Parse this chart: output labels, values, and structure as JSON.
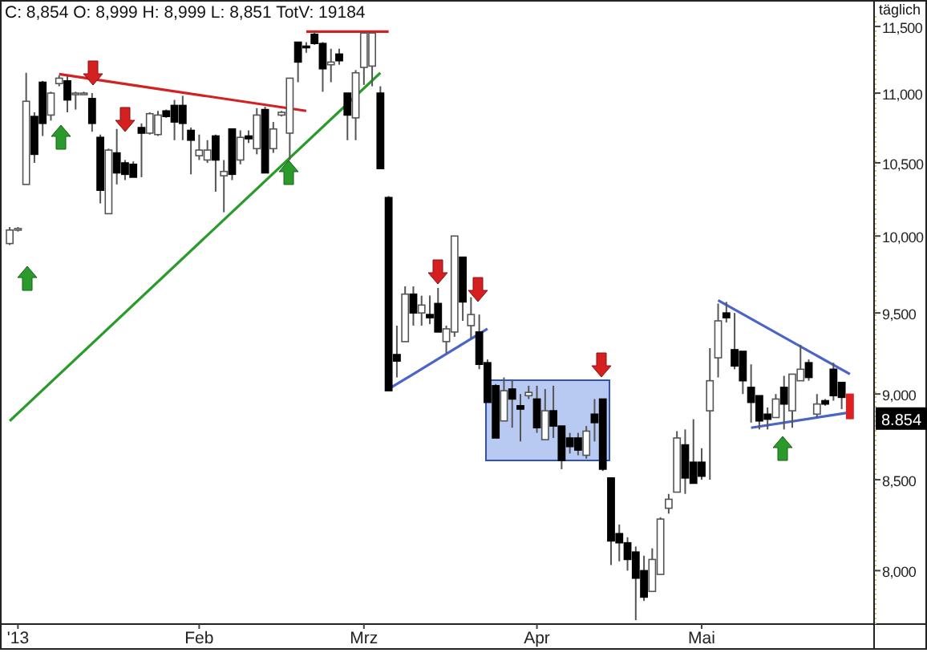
{
  "chart_data": {
    "type": "candlestick",
    "title": "C: 8,854 O: 8,999 H: 8,999 L: 8,851 TotV: 19184",
    "subtitle": "täglich",
    "categories": [
      null,
      "'13",
      null,
      null,
      null,
      null,
      null,
      null,
      null,
      null,
      null,
      null,
      null,
      null,
      null,
      null,
      null,
      null,
      null,
      null,
      null,
      null,
      null,
      "Feb",
      null,
      null,
      null,
      null,
      null,
      null,
      null,
      null,
      null,
      null,
      null,
      null,
      null,
      null,
      null,
      null,
      null,
      null,
      null,
      "Mrz",
      null,
      null,
      null,
      null,
      null,
      null,
      null,
      null,
      null,
      null,
      null,
      null,
      null,
      null,
      null,
      null,
      null,
      null,
      null,
      null,
      "Apr",
      null,
      null,
      null,
      null,
      null,
      null,
      null,
      null,
      null,
      null,
      null,
      null,
      null,
      null,
      null,
      null,
      null,
      null,
      null,
      "Mai",
      null,
      null,
      null,
      null,
      null,
      null,
      null,
      null,
      null,
      null,
      null,
      null,
      null,
      null,
      null,
      null,
      null,
      null
    ],
    "ohlc": [
      [
        9950,
        10060,
        9940,
        10040
      ],
      [
        10040,
        10060,
        10030,
        10050
      ],
      [
        10350,
        11150,
        10350,
        10940
      ],
      [
        10830,
        10860,
        10500,
        10560
      ],
      [
        11080,
        11090,
        10690,
        10780
      ],
      [
        10840,
        11010,
        10800,
        11000
      ],
      [
        11070,
        11130,
        11050,
        11110
      ],
      [
        11090,
        11130,
        10860,
        10950
      ],
      [
        11000,
        11010,
        10880,
        11000
      ],
      [
        11000,
        11010,
        10990,
        11000
      ],
      [
        10960,
        11000,
        10720,
        10780
      ],
      [
        10680,
        10700,
        10220,
        10310
      ],
      [
        10150,
        10600,
        10150,
        10590
      ],
      [
        10570,
        10740,
        10350,
        10430
      ],
      [
        10500,
        10520,
        10380,
        10420
      ],
      [
        10490,
        10510,
        10400,
        10400
      ],
      [
        10750,
        10780,
        10400,
        10710
      ],
      [
        10710,
        10860,
        10700,
        10850
      ],
      [
        10700,
        10870,
        10690,
        10840
      ],
      [
        10870,
        10880,
        10820,
        10830
      ],
      [
        10910,
        10950,
        10660,
        10790
      ],
      [
        10910,
        10980,
        10660,
        10780
      ],
      [
        10730,
        10750,
        10420,
        10660
      ],
      [
        10550,
        10700,
        10520,
        10590
      ],
      [
        10520,
        10660,
        10500,
        10590
      ],
      [
        10690,
        10700,
        10300,
        10520
      ],
      [
        10410,
        10520,
        10160,
        10440
      ],
      [
        10740,
        10740,
        10380,
        10420
      ],
      [
        10520,
        10730,
        10490,
        10680
      ],
      [
        10690,
        10730,
        10640,
        10670
      ],
      [
        10600,
        10890,
        10560,
        10840
      ],
      [
        10880,
        10900,
        10430,
        10430
      ],
      [
        10600,
        10790,
        10570,
        10740
      ],
      [
        10840,
        10870,
        10830,
        10860
      ],
      [
        10710,
        11110,
        10520,
        11110
      ],
      [
        11380,
        11380,
        11080,
        11230
      ],
      [
        11350,
        11380,
        11300,
        11340
      ],
      [
        11440,
        11470,
        11360,
        11370
      ],
      [
        11370,
        11380,
        11010,
        11180
      ],
      [
        11210,
        11330,
        11080,
        11230
      ],
      [
        11290,
        11330,
        11210,
        11240
      ],
      [
        11000,
        11000,
        10660,
        10840
      ],
      [
        10820,
        11170,
        10660,
        11150
      ],
      [
        11190,
        11450,
        11060,
        11450
      ],
      [
        11200,
        11450,
        11050,
        11450
      ],
      [
        11000,
        11050,
        10460,
        10460
      ],
      [
        10260,
        10270,
        9020,
        9020
      ],
      [
        9240,
        9420,
        9100,
        9200
      ],
      [
        9320,
        9670,
        9320,
        9620
      ],
      [
        9620,
        9670,
        9420,
        9500
      ],
      [
        9500,
        9610,
        9420,
        9550
      ],
      [
        9490,
        9610,
        9430,
        9470
      ],
      [
        9560,
        9660,
        9380,
        9380
      ],
      [
        9320,
        9420,
        9250,
        9400
      ],
      [
        9380,
        10000,
        9350,
        10000
      ],
      [
        9860,
        9860,
        9450,
        9570
      ],
      [
        9420,
        9600,
        9340,
        9490
      ],
      [
        9380,
        9490,
        9150,
        9180
      ],
      [
        9190,
        9210,
        8950,
        8950
      ],
      [
        9050,
        9060,
        8740,
        8740
      ],
      [
        8840,
        9100,
        8840,
        9020
      ],
      [
        9030,
        9080,
        8800,
        8970
      ],
      [
        8930,
        9000,
        8720,
        8910
      ],
      [
        8990,
        9050,
        8970,
        9010
      ],
      [
        8970,
        9050,
        8770,
        8800
      ],
      [
        8730,
        9030,
        8730,
        8900
      ],
      [
        8900,
        9050,
        8740,
        8810
      ],
      [
        8810,
        8810,
        8560,
        8610
      ],
      [
        8740,
        8770,
        8650,
        8690
      ],
      [
        8740,
        8770,
        8640,
        8670
      ],
      [
        8640,
        8810,
        8620,
        8780
      ],
      [
        8880,
        8970,
        8720,
        8830
      ],
      [
        8970,
        8970,
        8550,
        8560
      ],
      [
        8510,
        8510,
        8030,
        8160
      ],
      [
        8200,
        8250,
        8050,
        8150
      ],
      [
        8150,
        8180,
        8000,
        8060
      ],
      [
        8100,
        8130,
        7740,
        7960
      ],
      [
        8000,
        8080,
        7840,
        7860
      ],
      [
        7890,
        8120,
        7890,
        8060
      ],
      [
        7980,
        8290,
        7980,
        8280
      ],
      [
        8340,
        8420,
        8310,
        8390
      ],
      [
        8430,
        8780,
        8430,
        8740
      ],
      [
        8700,
        8790,
        8420,
        8510
      ],
      [
        8600,
        8850,
        8480,
        8480
      ],
      [
        8600,
        8680,
        8500,
        8520
      ],
      [
        8900,
        9280,
        8500,
        9080
      ],
      [
        9220,
        9560,
        9100,
        9450
      ],
      [
        9500,
        9570,
        9440,
        9470
      ],
      [
        9270,
        9500,
        9150,
        9170
      ],
      [
        9260,
        9260,
        9000,
        9080
      ],
      [
        9040,
        9180,
        8830,
        8950
      ],
      [
        8990,
        8990,
        8790,
        8840
      ],
      [
        8880,
        8920,
        8790,
        8850
      ],
      [
        8860,
        9000,
        8860,
        8970
      ],
      [
        9040,
        9110,
        8790,
        8940
      ],
      [
        8900,
        9120,
        8800,
        9120
      ],
      [
        9080,
        9300,
        9080,
        9150
      ],
      [
        9190,
        9210,
        9080,
        9100
      ],
      [
        8880,
        9000,
        8860,
        8940
      ],
      [
        8960,
        8970,
        8930,
        8940
      ],
      [
        9150,
        9190,
        8960,
        8990
      ],
      [
        9070,
        9070,
        8910,
        8980
      ],
      [
        8999,
        8999,
        8851,
        8854
      ]
    ],
    "colors": [
      "#ffffff",
      "#ffffff",
      "#ffffff",
      "#000000",
      "#000000",
      "#ffffff",
      "#ffffff",
      "#000000",
      "#ffffff",
      "#ffffff",
      "#000000",
      "#000000",
      "#ffffff",
      "#000000",
      "#000000",
      "#000000",
      "#000000",
      "#ffffff",
      "#ffffff",
      "#000000",
      "#000000",
      "#000000",
      "#000000",
      "#ffffff",
      "#ffffff",
      "#000000",
      "#ffffff",
      "#000000",
      "#ffffff",
      "#000000",
      "#ffffff",
      "#000000",
      "#ffffff",
      "#ffffff",
      "#ffffff",
      "#000000",
      "#000000",
      "#000000",
      "#000000",
      "#ffffff",
      "#000000",
      "#000000",
      "#ffffff",
      "#ffffff",
      "#ffffff",
      "#000000",
      "#000000",
      "#000000",
      "#ffffff",
      "#000000",
      "#ffffff",
      "#000000",
      "#000000",
      "#ffffff",
      "#ffffff",
      "#000000",
      "#ffffff",
      "#000000",
      "#000000",
      "#000000",
      "#ffffff",
      "#000000",
      "#000000",
      "#ffffff",
      "#000000",
      "#ffffff",
      "#000000",
      "#000000",
      "#000000",
      "#000000",
      "#ffffff",
      "#000000",
      "#000000",
      "#000000",
      "#000000",
      "#000000",
      "#000000",
      "#000000",
      "#ffffff",
      "#ffffff",
      "#ffffff",
      "#ffffff",
      "#000000",
      "#000000",
      "#000000",
      "#ffffff",
      "#ffffff",
      "#000000",
      "#000000",
      "#000000",
      "#000000",
      "#000000",
      "#000000",
      "#ffffff",
      "#000000",
      "#ffffff",
      "#ffffff",
      "#000000",
      "#ffffff",
      "#000000",
      "#000000",
      "#000000",
      "#e02020"
    ],
    "series": [
      {
        "type": "line",
        "color": "#d42020",
        "values": [
          null,
          null,
          null,
          null,
          null,
          null,
          11140,
          null,
          null,
          null,
          null,
          null,
          null,
          null,
          null,
          null,
          null,
          null,
          null,
          null,
          null,
          null,
          null,
          null,
          null,
          null,
          null,
          null,
          null,
          null,
          null,
          null,
          null,
          null,
          null,
          null,
          10870,
          null,
          null,
          null,
          null,
          null,
          null,
          null,
          null,
          null,
          null,
          null,
          null,
          null,
          null,
          null,
          null,
          null,
          null,
          null,
          null,
          null,
          null,
          null,
          null,
          null,
          null,
          null,
          null,
          null,
          null,
          null,
          null,
          null,
          null,
          null,
          null,
          null,
          null,
          null,
          null,
          null,
          null,
          null,
          null,
          null,
          null,
          null,
          null,
          null,
          null,
          null,
          null,
          null,
          null,
          null,
          null,
          null,
          null,
          null,
          null,
          null,
          null,
          null,
          null,
          null,
          null
        ]
      },
      {
        "type": "line",
        "color": "#d42020",
        "values": [
          null,
          null,
          null,
          null,
          null,
          null,
          null,
          null,
          null,
          null,
          null,
          null,
          null,
          null,
          null,
          null,
          null,
          null,
          null,
          null,
          null,
          null,
          null,
          null,
          null,
          null,
          null,
          null,
          null,
          null,
          null,
          null,
          null,
          null,
          null,
          null,
          11460,
          null,
          null,
          null,
          null,
          null,
          null,
          null,
          null,
          null,
          11460,
          null,
          null,
          null,
          null,
          null,
          null,
          null,
          null,
          null,
          null,
          null,
          null,
          null,
          null,
          null,
          null,
          null,
          null,
          null,
          null,
          null,
          null,
          null,
          null,
          null,
          null,
          null,
          null,
          null,
          null,
          null,
          null,
          null,
          null,
          null,
          null,
          null,
          null,
          null,
          null,
          null,
          null,
          null,
          null,
          null,
          null,
          null,
          null,
          null,
          null,
          null,
          null,
          null,
          null,
          null,
          null
        ]
      },
      {
        "type": "line",
        "color": "#2a9a2a",
        "values": [
          8840,
          null,
          null,
          null,
          null,
          null,
          null,
          null,
          null,
          null,
          null,
          null,
          null,
          null,
          null,
          null,
          null,
          null,
          null,
          null,
          null,
          null,
          null,
          null,
          null,
          null,
          null,
          null,
          null,
          null,
          null,
          null,
          null,
          null,
          null,
          null,
          null,
          null,
          null,
          null,
          null,
          null,
          null,
          null,
          null,
          11150,
          null,
          null,
          null,
          null,
          null,
          null,
          null,
          null,
          null,
          null,
          null,
          null,
          null,
          null,
          null,
          null,
          null,
          null,
          null,
          null,
          null,
          null,
          null,
          null,
          null,
          null,
          null,
          null,
          null,
          null,
          null,
          null,
          null,
          null,
          null,
          null,
          null,
          null,
          null,
          null,
          null,
          null,
          null,
          null,
          null,
          null,
          null,
          null,
          null,
          null,
          null,
          null,
          null,
          null,
          null,
          null,
          null
        ]
      },
      {
        "type": "line",
        "color": "#4a64c8",
        "values": [
          null,
          null,
          null,
          null,
          null,
          null,
          null,
          null,
          null,
          null,
          null,
          null,
          null,
          null,
          null,
          null,
          null,
          null,
          null,
          null,
          null,
          null,
          null,
          null,
          null,
          null,
          null,
          null,
          null,
          null,
          null,
          null,
          null,
          null,
          null,
          null,
          null,
          null,
          null,
          null,
          null,
          null,
          null,
          null,
          null,
          null,
          9030,
          null,
          null,
          null,
          null,
          null,
          null,
          null,
          null,
          null,
          null,
          null,
          9400,
          null,
          null,
          null,
          null,
          null,
          null,
          null,
          null,
          null,
          null,
          null,
          null,
          null,
          null,
          null,
          null,
          null,
          null,
          null,
          null,
          null,
          null,
          null,
          null,
          null,
          null,
          null,
          null,
          null,
          null,
          null,
          null,
          null,
          null,
          null,
          null,
          null,
          null,
          null,
          null,
          null,
          null,
          null,
          null
        ]
      },
      {
        "type": "line",
        "color": "#4a64c8",
        "values": [
          null,
          null,
          null,
          null,
          null,
          null,
          null,
          null,
          null,
          null,
          null,
          null,
          null,
          null,
          null,
          null,
          null,
          null,
          null,
          null,
          null,
          null,
          null,
          null,
          null,
          null,
          null,
          null,
          null,
          null,
          null,
          null,
          null,
          null,
          null,
          null,
          null,
          null,
          null,
          null,
          null,
          null,
          null,
          null,
          null,
          null,
          null,
          null,
          null,
          null,
          null,
          null,
          null,
          null,
          null,
          null,
          null,
          null,
          null,
          null,
          null,
          null,
          null,
          null,
          null,
          null,
          null,
          null,
          null,
          null,
          null,
          null,
          null,
          null,
          null,
          null,
          null,
          null,
          null,
          null,
          null,
          null,
          null,
          null,
          null,
          null,
          9580,
          null,
          null,
          null,
          null,
          null,
          null,
          null,
          null,
          null,
          null,
          null,
          null,
          null,
          null,
          null,
          9120
        ]
      },
      {
        "type": "line",
        "color": "#4a64c8",
        "values": [
          null,
          null,
          null,
          null,
          null,
          null,
          null,
          null,
          null,
          null,
          null,
          null,
          null,
          null,
          null,
          null,
          null,
          null,
          null,
          null,
          null,
          null,
          null,
          null,
          null,
          null,
          null,
          null,
          null,
          null,
          null,
          null,
          null,
          null,
          null,
          null,
          null,
          null,
          null,
          null,
          null,
          null,
          null,
          null,
          null,
          null,
          null,
          null,
          null,
          null,
          null,
          null,
          null,
          null,
          null,
          null,
          null,
          null,
          null,
          null,
          null,
          null,
          null,
          null,
          null,
          null,
          null,
          null,
          null,
          null,
          null,
          null,
          null,
          null,
          null,
          null,
          null,
          null,
          null,
          null,
          null,
          null,
          null,
          null,
          null,
          null,
          null,
          null,
          null,
          null,
          8800,
          null,
          null,
          null,
          null,
          null,
          null,
          null,
          null,
          null,
          null,
          null,
          8890
        ]
      }
    ],
    "ylim": [
      7720,
      11580
    ],
    "yticks": [
      {
        "value": 8000,
        "label": "8,000"
      },
      {
        "value": 8500,
        "label": "8,500"
      },
      {
        "value": 9000,
        "label": "9,000"
      },
      {
        "value": 9500,
        "label": "9,500"
      },
      {
        "value": 10000,
        "label": "10,000"
      },
      {
        "value": 10500,
        "label": "10,500"
      },
      {
        "value": 11000,
        "label": "11,000"
      },
      {
        "value": 11500,
        "label": "11,500"
      }
    ],
    "log": true,
    "annotations": [
      "8.854"
    ]
  }
}
